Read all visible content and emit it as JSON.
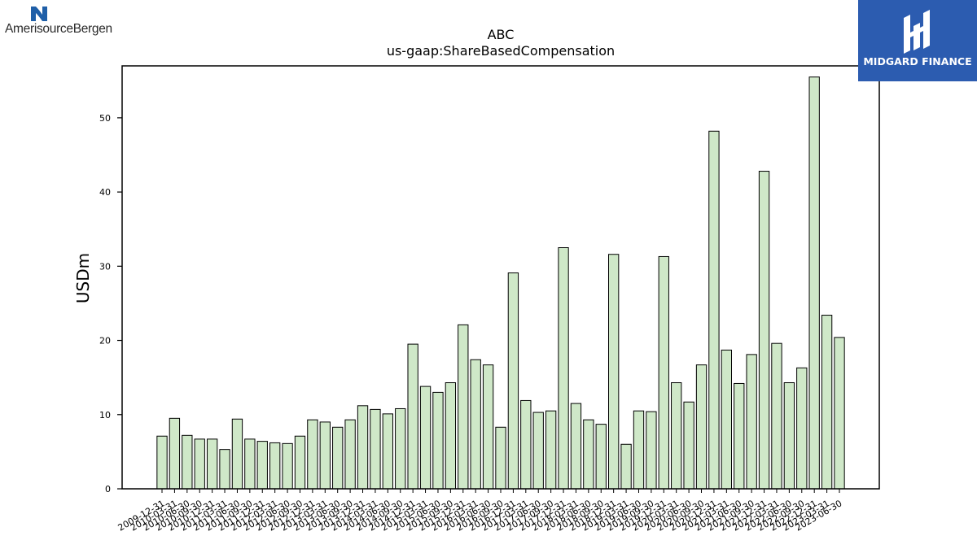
{
  "logos": {
    "left": {
      "text": "AmerisourceBergen",
      "icon": "amerisourcebergen-logo-icon"
    },
    "right": {
      "text": "MIDGARD FINANCE",
      "icon": "midgard-logo-icon",
      "background": "#2c5cb0"
    }
  },
  "chart_data": {
    "type": "bar",
    "title": "ABC",
    "subtitle": "us-gaap:ShareBasedCompensation",
    "xlabel": "",
    "ylabel": "USDm",
    "ylim": [
      0,
      57
    ],
    "yticks": [
      0,
      10,
      20,
      30,
      40,
      50
    ],
    "grid": false,
    "bar_color": "#cfe8c8",
    "bar_edge_color": "#000000",
    "categories": [
      "2009-12-31",
      "2010-03-31",
      "2010-06-30",
      "2010-09-30",
      "2010-12-31",
      "2011-03-31",
      "2011-06-30",
      "2011-09-30",
      "2011-12-31",
      "2012-03-31",
      "2012-06-30",
      "2012-09-30",
      "2012-12-31",
      "2013-03-31",
      "2013-06-30",
      "2013-09-30",
      "2013-12-31",
      "2014-03-31",
      "2014-06-30",
      "2014-09-30",
      "2014-12-31",
      "2015-03-31",
      "2015-06-30",
      "2015-09-30",
      "2015-12-31",
      "2016-03-31",
      "2016-06-30",
      "2016-09-30",
      "2016-12-31",
      "2017-03-31",
      "2017-06-30",
      "2017-09-30",
      "2017-12-31",
      "2018-03-31",
      "2018-06-30",
      "2018-09-30",
      "2018-12-31",
      "2019-03-31",
      "2019-06-30",
      "2019-09-30",
      "2019-12-31",
      "2020-03-31",
      "2020-06-30",
      "2020-09-30",
      "2020-12-31",
      "2021-03-31",
      "2021-06-30",
      "2021-09-30",
      "2021-12-31",
      "2022-03-31",
      "2022-06-30",
      "2022-09-30",
      "2022-12-31",
      "2023-03-31",
      "2023-06-30"
    ],
    "values": [
      7.1,
      9.5,
      7.2,
      6.7,
      6.7,
      5.3,
      9.4,
      6.7,
      6.4,
      6.2,
      6.1,
      7.1,
      9.3,
      9.0,
      8.3,
      9.3,
      11.2,
      10.7,
      10.1,
      10.8,
      19.5,
      13.8,
      13.0,
      14.3,
      22.1,
      17.4,
      16.7,
      8.3,
      29.1,
      11.9,
      10.3,
      10.5,
      32.5,
      11.5,
      9.3,
      8.7,
      31.6,
      6.0,
      10.5,
      10.4,
      31.3,
      14.3,
      11.7,
      16.7,
      48.2,
      18.7,
      14.2,
      18.1,
      42.8,
      19.6,
      14.3,
      16.3,
      55.5,
      23.4,
      20.4
    ]
  }
}
